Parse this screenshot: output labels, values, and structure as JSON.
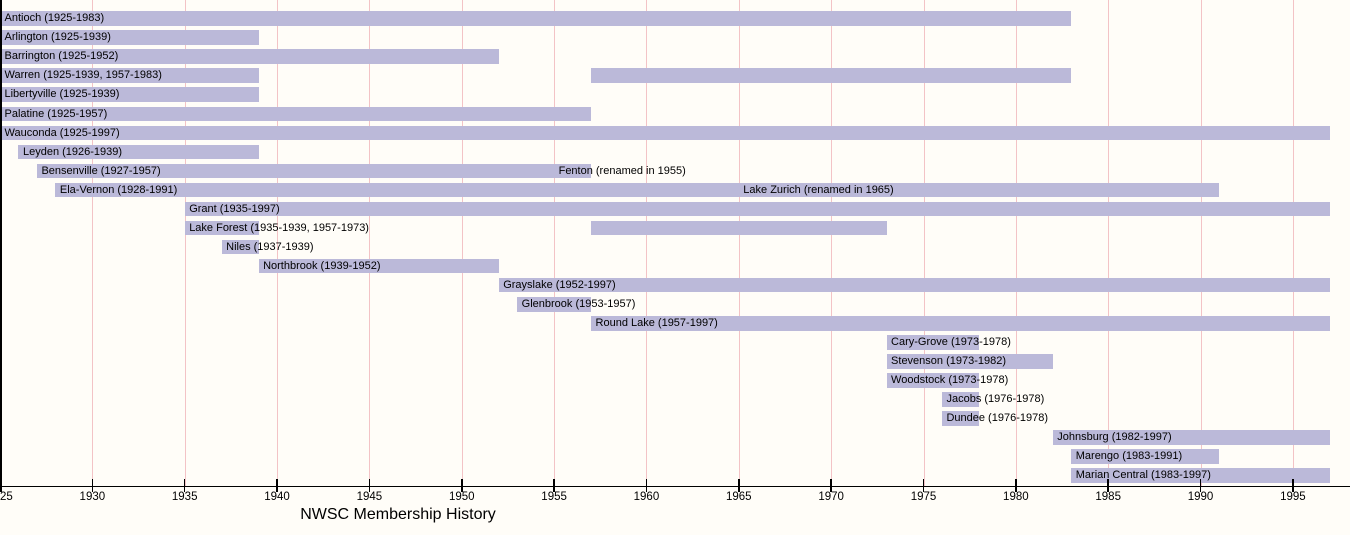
{
  "chart_data": {
    "type": "bar",
    "subtype": "horizontal-timeline-gantt",
    "title": "NWSC Membership History",
    "xlabel": "",
    "ylabel": "",
    "x_axis": {
      "min": 1925,
      "max": 1998,
      "ticks": [
        {
          "year": 1925,
          "label": "25"
        },
        {
          "year": 1930,
          "label": "1930"
        },
        {
          "year": 1935,
          "label": "1935"
        },
        {
          "year": 1940,
          "label": "1940"
        },
        {
          "year": 1945,
          "label": "1945"
        },
        {
          "year": 1950,
          "label": "1950"
        },
        {
          "year": 1955,
          "label": "1955"
        },
        {
          "year": 1960,
          "label": "1960"
        },
        {
          "year": 1965,
          "label": "1965"
        },
        {
          "year": 1970,
          "label": "1970"
        },
        {
          "year": 1975,
          "label": "1975"
        },
        {
          "year": 1980,
          "label": "1980"
        },
        {
          "year": 1985,
          "label": "1985"
        },
        {
          "year": 1990,
          "label": "1990"
        },
        {
          "year": 1995,
          "label": "1995"
        }
      ],
      "grid": "on",
      "gridline_interval_years": 5
    },
    "rows": [
      {
        "name": "Antioch",
        "label": "Antioch (1925-1983)",
        "segments": [
          [
            1925,
            1983
          ]
        ]
      },
      {
        "name": "Arlington",
        "label": "Arlington (1925-1939)",
        "segments": [
          [
            1925,
            1939
          ]
        ]
      },
      {
        "name": "Barrington",
        "label": "Barrington (1925-1952)",
        "segments": [
          [
            1925,
            1952
          ]
        ]
      },
      {
        "name": "Warren",
        "label": "Warren (1925-1939, 1957-1983)",
        "segments": [
          [
            1925,
            1939
          ],
          [
            1957,
            1983
          ]
        ]
      },
      {
        "name": "Libertyville",
        "label": "Libertyville (1925-1939)",
        "segments": [
          [
            1925,
            1939
          ]
        ]
      },
      {
        "name": "Palatine",
        "label": "Palatine (1925-1957)",
        "segments": [
          [
            1925,
            1957
          ]
        ]
      },
      {
        "name": "Wauconda",
        "label": "Wauconda (1925-1997)",
        "segments": [
          [
            1925,
            1997
          ]
        ]
      },
      {
        "name": "Leyden",
        "label": "Leyden (1926-1939)",
        "segments": [
          [
            1926,
            1939
          ]
        ]
      },
      {
        "name": "Bensenville",
        "label": "Bensenville (1927-1957)",
        "segments": [
          [
            1927,
            1957
          ]
        ],
        "annotation": {
          "text": "Fenton (renamed in 1955)",
          "year": 1955
        }
      },
      {
        "name": "Ela-Vernon",
        "label": "Ela-Vernon (1928-1991)",
        "segments": [
          [
            1928,
            1991
          ]
        ],
        "annotation": {
          "text": "Lake Zurich (renamed in 1965)",
          "year": 1965
        }
      },
      {
        "name": "Grant",
        "label": "Grant (1935-1997)",
        "segments": [
          [
            1935,
            1997
          ]
        ]
      },
      {
        "name": "Lake Forest",
        "label": "Lake Forest (1935-1939, 1957-1973)",
        "segments": [
          [
            1935,
            1939
          ],
          [
            1957,
            1973
          ]
        ]
      },
      {
        "name": "Niles",
        "label": "Niles (1937-1939)",
        "segments": [
          [
            1937,
            1939
          ]
        ]
      },
      {
        "name": "Northbrook",
        "label": "Northbrook (1939-1952)",
        "segments": [
          [
            1939,
            1952
          ]
        ]
      },
      {
        "name": "Grayslake",
        "label": "Grayslake (1952-1997)",
        "segments": [
          [
            1952,
            1997
          ]
        ]
      },
      {
        "name": "Glenbrook",
        "label": "Glenbrook (1953-1957)",
        "segments": [
          [
            1953,
            1957
          ]
        ]
      },
      {
        "name": "Round Lake",
        "label": "Round Lake (1957-1997)",
        "segments": [
          [
            1957,
            1997
          ]
        ]
      },
      {
        "name": "Cary-Grove",
        "label": "Cary-Grove (1973-1978)",
        "segments": [
          [
            1973,
            1978
          ]
        ]
      },
      {
        "name": "Stevenson",
        "label": "Stevenson (1973-1982)",
        "segments": [
          [
            1973,
            1982
          ]
        ]
      },
      {
        "name": "Woodstock",
        "label": "Woodstock (1973-1978)",
        "segments": [
          [
            1973,
            1978
          ]
        ]
      },
      {
        "name": "Jacobs",
        "label": "Jacobs (1976-1978)",
        "segments": [
          [
            1976,
            1978
          ]
        ]
      },
      {
        "name": "Dundee",
        "label": "Dundee (1976-1978)",
        "segments": [
          [
            1976,
            1978
          ]
        ]
      },
      {
        "name": "Johnsburg",
        "label": "Johnsburg (1982-1997)",
        "segments": [
          [
            1982,
            1997
          ]
        ]
      },
      {
        "name": "Marengo",
        "label": "Marengo (1983-1991)",
        "segments": [
          [
            1983,
            1991
          ]
        ]
      },
      {
        "name": "Marian Central",
        "label": "Marian Central (1983-1997)",
        "segments": [
          [
            1983,
            1997
          ]
        ]
      }
    ],
    "colors": {
      "bar": "#bbb9d9",
      "gridline": "#f3c3c6",
      "axis": "#000000",
      "text": "#000000",
      "background": "#fffdf8"
    }
  }
}
